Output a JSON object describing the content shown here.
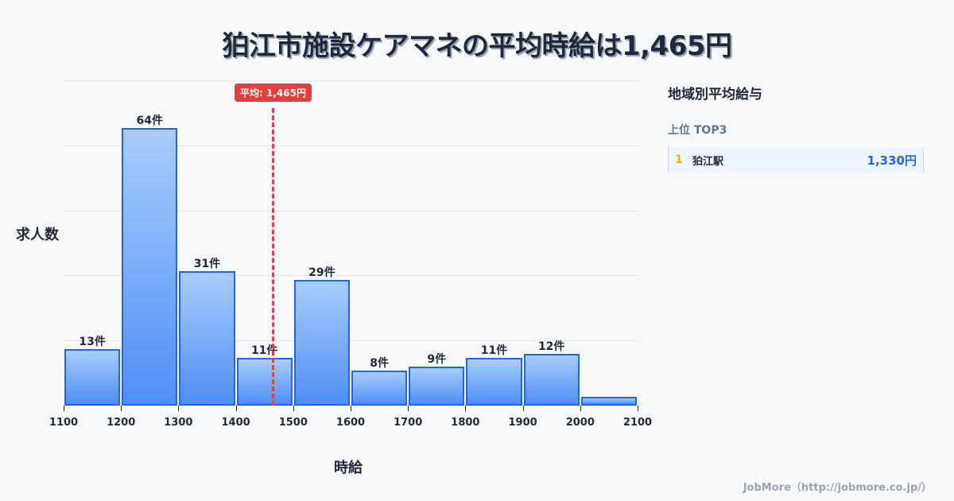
{
  "title": "狛江市施設ケアマネの平均時給は1,465円",
  "axis": {
    "ylabel": "求人数",
    "xlabel": "時給"
  },
  "average": {
    "label": "平均: 1,465円",
    "value": 1465
  },
  "side_panel": {
    "title": "地域別平均給与",
    "subtitle": "上位 TOP3",
    "ranks": [
      {
        "rank": "1",
        "name": "狛江駅",
        "value": "1,330円"
      }
    ]
  },
  "footer": "JobMore（http://jobmore.co.jp/）",
  "colors": {
    "bar_border": "#2563eb",
    "bar_top": "#a7cdfc",
    "bar_bottom": "#4f8ef5",
    "average_line": "#e53e3e",
    "rank_number": "#eab308",
    "rank_value": "#2563eb"
  },
  "chart_data": {
    "type": "bar",
    "title": "狛江市施設ケアマネの平均時給は1,465円",
    "xlabel": "時給",
    "ylabel": "求人数",
    "bin_edges": [
      1100,
      1200,
      1300,
      1400,
      1500,
      1600,
      1700,
      1800,
      1900,
      2000,
      2100
    ],
    "categories": [
      "1100-1200",
      "1200-1300",
      "1300-1400",
      "1400-1500",
      "1500-1600",
      "1600-1700",
      "1700-1800",
      "1800-1900",
      "1900-2000",
      "2000-2100"
    ],
    "values": [
      13,
      64,
      31,
      11,
      29,
      8,
      9,
      11,
      12,
      2
    ],
    "labels": [
      "13件",
      "64件",
      "31件",
      "11件",
      "29件",
      "8件",
      "9件",
      "11件",
      "12件",
      ""
    ],
    "xticks": [
      "1100",
      "1200",
      "1300",
      "1400",
      "1500",
      "1600",
      "1700",
      "1800",
      "1900",
      "2000",
      "2100"
    ],
    "ylim": [
      0,
      75
    ],
    "grid": true,
    "annotations": [
      {
        "type": "vline",
        "x": 1465,
        "label": "平均: 1,465円"
      }
    ]
  }
}
